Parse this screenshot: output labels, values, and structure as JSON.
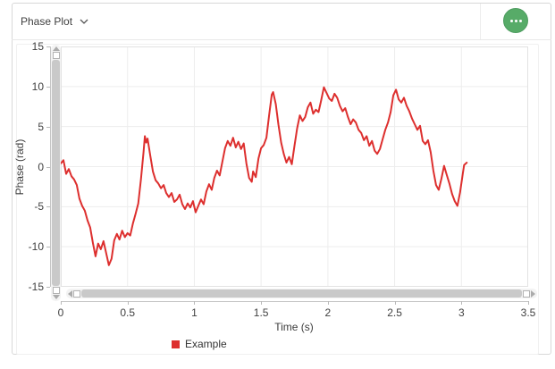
{
  "header": {
    "title": "Phase Plot",
    "menu_button_icon": "ellipsis-dots"
  },
  "colors": {
    "accent_green": "#57ab68",
    "series_red": "#dd2f2e",
    "grid": "#ededed",
    "plot_border": "#e2e2e2",
    "axis_line": "#c6c6c6",
    "tick_text": "#404040"
  },
  "chart_data": {
    "type": "line",
    "title": "",
    "xlabel": "Time (s)",
    "ylabel": "Phase (rad)",
    "xlim": [
      0,
      3.5
    ],
    "ylim": [
      -15,
      15
    ],
    "grid": true,
    "x_ticks": [
      0,
      0.5,
      1,
      1.5,
      2,
      2.5,
      3,
      3.5
    ],
    "x_tick_labels": [
      "0",
      "0.5",
      "1",
      "1.5",
      "2",
      "2.5",
      "3",
      "3.5"
    ],
    "y_ticks": [
      15,
      10,
      5,
      0,
      -5,
      -10,
      -15
    ],
    "y_tick_labels": [
      "15",
      "10",
      "5",
      "0",
      "-5",
      "-10",
      "-15"
    ],
    "legend_position": "bottom",
    "legend": [
      {
        "label": "Example",
        "color": "#dd2f2e"
      }
    ],
    "series": [
      {
        "name": "Example",
        "color": "#dd2f2e",
        "points": [
          [
            0.0,
            0.4
          ],
          [
            0.02,
            0.8
          ],
          [
            0.04,
            -0.9
          ],
          [
            0.06,
            -0.3
          ],
          [
            0.08,
            -1.2
          ],
          [
            0.1,
            -1.6
          ],
          [
            0.12,
            -2.3
          ],
          [
            0.14,
            -4.0
          ],
          [
            0.16,
            -4.9
          ],
          [
            0.18,
            -5.5
          ],
          [
            0.2,
            -6.7
          ],
          [
            0.22,
            -7.6
          ],
          [
            0.24,
            -9.5
          ],
          [
            0.26,
            -11.2
          ],
          [
            0.28,
            -9.6
          ],
          [
            0.3,
            -10.3
          ],
          [
            0.32,
            -9.3
          ],
          [
            0.34,
            -10.8
          ],
          [
            0.36,
            -12.3
          ],
          [
            0.38,
            -11.5
          ],
          [
            0.4,
            -9.2
          ],
          [
            0.42,
            -8.4
          ],
          [
            0.44,
            -9.1
          ],
          [
            0.46,
            -8.0
          ],
          [
            0.48,
            -8.8
          ],
          [
            0.5,
            -8.3
          ],
          [
            0.52,
            -8.6
          ],
          [
            0.54,
            -7.1
          ],
          [
            0.56,
            -5.9
          ],
          [
            0.58,
            -4.6
          ],
          [
            0.6,
            -1.6
          ],
          [
            0.62,
            1.8
          ],
          [
            0.63,
            3.8
          ],
          [
            0.64,
            3.0
          ],
          [
            0.65,
            3.5
          ],
          [
            0.67,
            1.4
          ],
          [
            0.69,
            -0.6
          ],
          [
            0.71,
            -1.7
          ],
          [
            0.73,
            -2.1
          ],
          [
            0.75,
            -2.7
          ],
          [
            0.77,
            -2.3
          ],
          [
            0.79,
            -3.3
          ],
          [
            0.81,
            -3.8
          ],
          [
            0.83,
            -3.3
          ],
          [
            0.85,
            -4.4
          ],
          [
            0.87,
            -4.1
          ],
          [
            0.89,
            -3.5
          ],
          [
            0.91,
            -4.7
          ],
          [
            0.93,
            -5.3
          ],
          [
            0.95,
            -4.6
          ],
          [
            0.97,
            -5.1
          ],
          [
            0.99,
            -4.3
          ],
          [
            1.01,
            -5.7
          ],
          [
            1.03,
            -4.9
          ],
          [
            1.05,
            -4.1
          ],
          [
            1.07,
            -4.7
          ],
          [
            1.09,
            -3.1
          ],
          [
            1.11,
            -2.2
          ],
          [
            1.13,
            -2.9
          ],
          [
            1.15,
            -1.4
          ],
          [
            1.17,
            -0.5
          ],
          [
            1.19,
            -1.1
          ],
          [
            1.21,
            0.6
          ],
          [
            1.23,
            2.3
          ],
          [
            1.25,
            3.2
          ],
          [
            1.27,
            2.6
          ],
          [
            1.29,
            3.6
          ],
          [
            1.31,
            2.4
          ],
          [
            1.33,
            3.1
          ],
          [
            1.35,
            2.2
          ],
          [
            1.37,
            2.9
          ],
          [
            1.39,
            0.4
          ],
          [
            1.41,
            -1.4
          ],
          [
            1.43,
            -1.9
          ],
          [
            1.44,
            -0.6
          ],
          [
            1.46,
            -1.3
          ],
          [
            1.48,
            1.0
          ],
          [
            1.5,
            2.3
          ],
          [
            1.52,
            2.7
          ],
          [
            1.54,
            3.6
          ],
          [
            1.56,
            6.4
          ],
          [
            1.58,
            9.0
          ],
          [
            1.59,
            9.3
          ],
          [
            1.61,
            7.8
          ],
          [
            1.63,
            5.2
          ],
          [
            1.65,
            3.0
          ],
          [
            1.67,
            1.6
          ],
          [
            1.69,
            0.5
          ],
          [
            1.71,
            1.2
          ],
          [
            1.73,
            0.3
          ],
          [
            1.75,
            2.6
          ],
          [
            1.77,
            4.8
          ],
          [
            1.79,
            6.4
          ],
          [
            1.81,
            5.7
          ],
          [
            1.83,
            6.2
          ],
          [
            1.85,
            7.4
          ],
          [
            1.87,
            8.0
          ],
          [
            1.89,
            6.6
          ],
          [
            1.91,
            7.1
          ],
          [
            1.93,
            6.8
          ],
          [
            1.95,
            8.3
          ],
          [
            1.97,
            9.9
          ],
          [
            1.99,
            9.2
          ],
          [
            2.01,
            8.5
          ],
          [
            2.03,
            8.2
          ],
          [
            2.05,
            9.1
          ],
          [
            2.07,
            8.6
          ],
          [
            2.09,
            7.6
          ],
          [
            2.11,
            6.9
          ],
          [
            2.13,
            7.3
          ],
          [
            2.15,
            6.2
          ],
          [
            2.17,
            5.3
          ],
          [
            2.19,
            5.9
          ],
          [
            2.21,
            5.5
          ],
          [
            2.23,
            4.6
          ],
          [
            2.25,
            4.2
          ],
          [
            2.27,
            3.3
          ],
          [
            2.29,
            3.8
          ],
          [
            2.31,
            2.6
          ],
          [
            2.33,
            3.2
          ],
          [
            2.35,
            2.0
          ],
          [
            2.37,
            1.6
          ],
          [
            2.39,
            2.2
          ],
          [
            2.41,
            3.4
          ],
          [
            2.43,
            4.6
          ],
          [
            2.45,
            5.5
          ],
          [
            2.47,
            6.8
          ],
          [
            2.49,
            8.9
          ],
          [
            2.51,
            9.6
          ],
          [
            2.53,
            8.4
          ],
          [
            2.55,
            8.0
          ],
          [
            2.57,
            8.6
          ],
          [
            2.59,
            7.6
          ],
          [
            2.61,
            6.9
          ],
          [
            2.63,
            6.0
          ],
          [
            2.65,
            5.3
          ],
          [
            2.67,
            4.6
          ],
          [
            2.69,
            5.1
          ],
          [
            2.71,
            3.2
          ],
          [
            2.73,
            2.8
          ],
          [
            2.75,
            3.3
          ],
          [
            2.77,
            1.8
          ],
          [
            2.79,
            -0.5
          ],
          [
            2.81,
            -2.3
          ],
          [
            2.83,
            -2.9
          ],
          [
            2.85,
            -1.5
          ],
          [
            2.87,
            0.1
          ],
          [
            2.89,
            -1.0
          ],
          [
            2.91,
            -2.1
          ],
          [
            2.93,
            -3.4
          ],
          [
            2.95,
            -4.3
          ],
          [
            2.97,
            -4.9
          ],
          [
            2.99,
            -3.2
          ],
          [
            3.01,
            -0.9
          ],
          [
            3.02,
            0.2
          ],
          [
            3.04,
            0.5
          ]
        ]
      }
    ]
  }
}
